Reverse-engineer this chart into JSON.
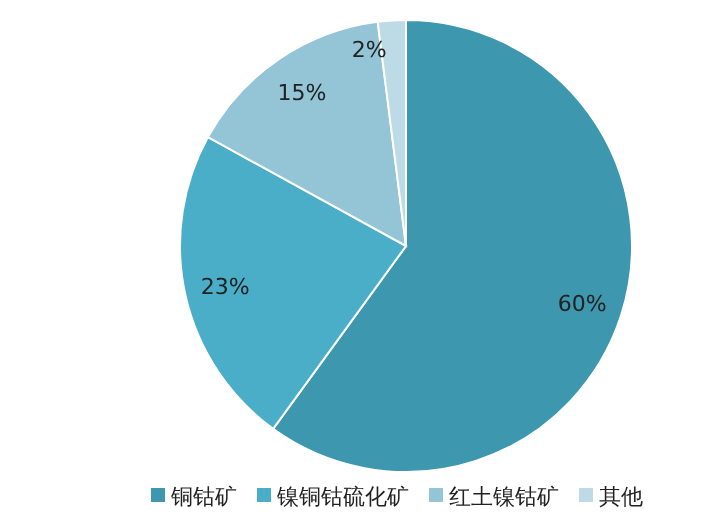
{
  "chart_data": {
    "type": "pie",
    "categories": [
      "铜钴矿",
      "镍铜钴硫化矿",
      "红土镍钴矿",
      "其他"
    ],
    "values": [
      60,
      23,
      15,
      2
    ],
    "colors": [
      "#3d97ae",
      "#4aaec8",
      "#93c5d7",
      "#bcdbe7"
    ],
    "value_labels": [
      "60%",
      "23%",
      "15%",
      "2%"
    ],
    "legend": "bottom"
  }
}
